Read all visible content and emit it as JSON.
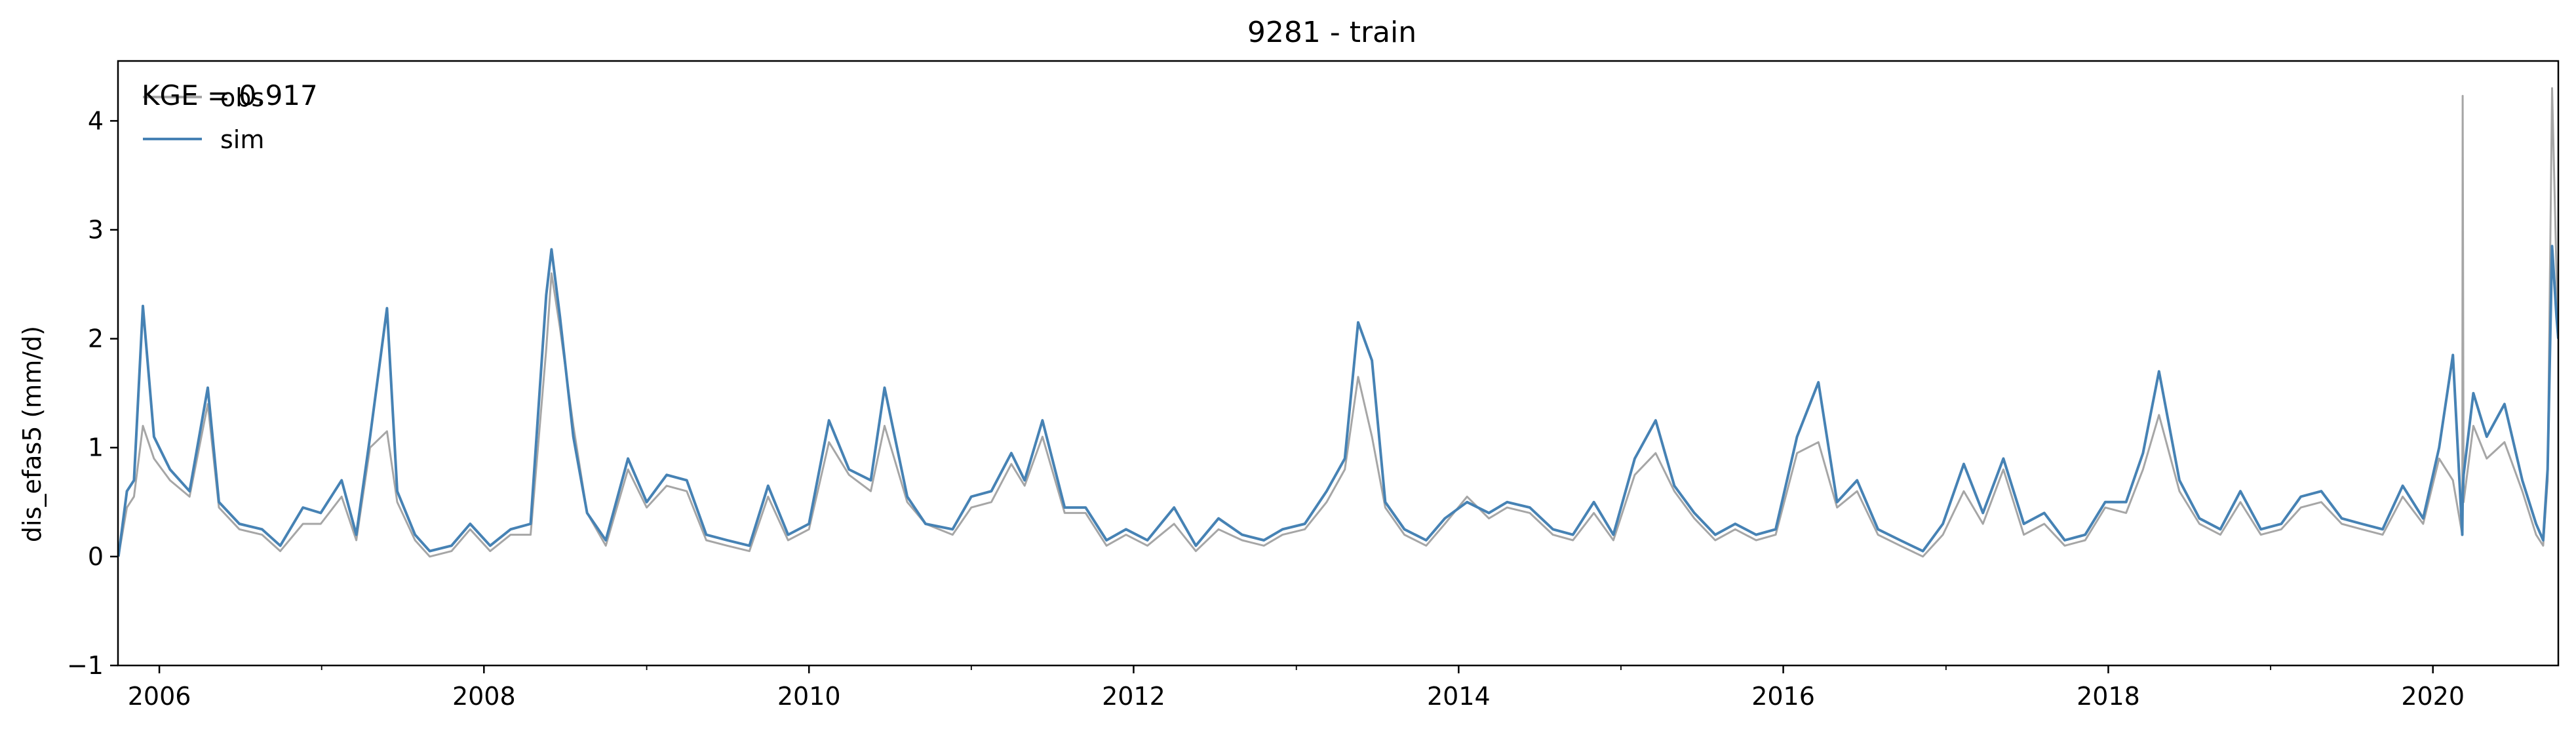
{
  "chart_data": {
    "type": "line",
    "title": "9281 - train",
    "xlabel": "",
    "ylabel": "dis_efas5 (mm/d)",
    "annotation": "KGE = 0.917",
    "xlim": [
      "2005-09-30",
      "2020-10-09"
    ],
    "ylim": [
      -1,
      4.55
    ],
    "yticks": [
      -1,
      0,
      1,
      2,
      3,
      4
    ],
    "ytick_labels": [
      "−1",
      "0",
      "1",
      "2",
      "3",
      "4"
    ],
    "xticks": [
      "2006-01-01",
      "2008-01-01",
      "2010-01-01",
      "2012-01-01",
      "2014-01-01",
      "2016-01-01",
      "2018-01-01",
      "2020-01-01"
    ],
    "xtick_labels": [
      "2006",
      "2008",
      "2010",
      "2012",
      "2014",
      "2016",
      "2018",
      "2020"
    ],
    "grid": false,
    "legend": {
      "position": "top-left",
      "entries": [
        "obs",
        "sim"
      ]
    },
    "series": [
      {
        "name": "obs",
        "color": "#a6a6a6",
        "x": [
          "2005-10-01",
          "2005-10-20",
          "2005-11-05",
          "2005-11-25",
          "2005-12-20",
          "2006-01-25",
          "2006-03-10",
          "2006-04-20",
          "2006-05-15",
          "2006-06-30",
          "2006-08-20",
          "2006-09-30",
          "2006-11-20",
          "2006-12-30",
          "2007-02-15",
          "2007-03-20",
          "2007-04-20",
          "2007-05-28",
          "2007-06-20",
          "2007-07-30",
          "2007-09-01",
          "2007-10-20",
          "2007-12-01",
          "2008-01-15",
          "2008-03-01",
          "2008-04-15",
          "2008-05-20",
          "2008-06-01",
          "2008-06-20",
          "2008-07-20",
          "2008-08-20",
          "2008-10-01",
          "2008-11-20",
          "2009-01-01",
          "2009-02-15",
          "2009-04-01",
          "2009-05-15",
          "2009-07-01",
          "2009-08-20",
          "2009-10-01",
          "2009-11-15",
          "2010-01-01",
          "2010-02-15",
          "2010-04-01",
          "2010-05-20",
          "2010-06-20",
          "2010-08-10",
          "2010-09-20",
          "2010-11-20",
          "2011-01-01",
          "2011-02-15",
          "2011-04-01",
          "2011-05-01",
          "2011-06-10",
          "2011-07-30",
          "2011-09-15",
          "2011-11-01",
          "2011-12-15",
          "2012-02-01",
          "2012-04-01",
          "2012-05-20",
          "2012-07-10",
          "2012-09-01",
          "2012-10-20",
          "2012-12-01",
          "2013-01-20",
          "2013-03-10",
          "2013-04-20",
          "2013-05-20",
          "2013-06-20",
          "2013-07-20",
          "2013-09-01",
          "2013-10-20",
          "2013-12-01",
          "2014-01-20",
          "2014-03-10",
          "2014-04-20",
          "2014-06-10",
          "2014-08-01",
          "2014-09-15",
          "2014-11-01",
          "2014-12-15",
          "2015-02-01",
          "2015-03-20",
          "2015-05-01",
          "2015-06-15",
          "2015-08-01",
          "2015-09-15",
          "2015-11-01",
          "2015-12-15",
          "2016-02-01",
          "2016-03-20",
          "2016-05-01",
          "2016-06-15",
          "2016-08-01",
          "2016-09-20",
          "2016-11-10",
          "2016-12-25",
          "2017-02-10",
          "2017-03-25",
          "2017-05-10",
          "2017-06-25",
          "2017-08-10",
          "2017-09-25",
          "2017-11-10",
          "2017-12-25",
          "2018-02-10",
          "2018-03-20",
          "2018-04-25",
          "2018-06-10",
          "2018-07-25",
          "2018-09-10",
          "2018-10-25",
          "2018-12-10",
          "2019-01-25",
          "2019-03-10",
          "2019-04-25",
          "2019-06-10",
          "2019-07-25",
          "2019-09-10",
          "2019-10-25",
          "2019-12-10",
          "2020-01-15",
          "2020-02-15",
          "2020-03-07",
          "2020-03-08",
          "2020-03-10",
          "2020-04-01",
          "2020-05-01",
          "2020-06-10",
          "2020-07-20",
          "2020-08-20",
          "2020-09-05",
          "2020-09-15",
          "2020-09-25",
          "2020-10-05",
          "2020-10-09"
        ],
        "values": [
          0.0,
          0.45,
          0.55,
          1.2,
          0.9,
          0.7,
          0.55,
          1.4,
          0.45,
          0.25,
          0.2,
          0.05,
          0.3,
          0.3,
          0.55,
          0.15,
          1.0,
          1.15,
          0.5,
          0.15,
          0.0,
          0.05,
          0.25,
          0.05,
          0.2,
          0.2,
          1.9,
          2.6,
          2.1,
          1.2,
          0.4,
          0.1,
          0.8,
          0.45,
          0.65,
          0.6,
          0.15,
          0.1,
          0.05,
          0.55,
          0.15,
          0.25,
          1.05,
          0.75,
          0.6,
          1.2,
          0.5,
          0.3,
          0.2,
          0.45,
          0.5,
          0.85,
          0.65,
          1.1,
          0.4,
          0.4,
          0.1,
          0.2,
          0.1,
          0.3,
          0.05,
          0.25,
          0.15,
          0.1,
          0.2,
          0.25,
          0.5,
          0.8,
          1.65,
          1.1,
          0.45,
          0.2,
          0.1,
          0.3,
          0.55,
          0.35,
          0.45,
          0.4,
          0.2,
          0.15,
          0.4,
          0.15,
          0.75,
          0.95,
          0.6,
          0.35,
          0.15,
          0.25,
          0.15,
          0.2,
          0.95,
          1.05,
          0.45,
          0.6,
          0.2,
          0.1,
          0.0,
          0.2,
          0.6,
          0.3,
          0.8,
          0.2,
          0.3,
          0.1,
          0.15,
          0.45,
          0.4,
          0.8,
          1.3,
          0.6,
          0.3,
          0.2,
          0.5,
          0.2,
          0.25,
          0.45,
          0.5,
          0.3,
          0.25,
          0.2,
          0.55,
          0.3,
          0.9,
          0.7,
          0.2,
          4.23,
          0.5,
          1.2,
          0.9,
          1.05,
          0.6,
          0.2,
          0.1,
          0.7,
          4.3,
          2.6,
          2.0
        ]
      },
      {
        "name": "sim",
        "color": "#4682b4",
        "x": [
          "2005-10-01",
          "2005-10-20",
          "2005-11-05",
          "2005-11-25",
          "2005-12-20",
          "2006-01-25",
          "2006-03-10",
          "2006-04-20",
          "2006-05-15",
          "2006-06-30",
          "2006-08-20",
          "2006-09-30",
          "2006-11-20",
          "2006-12-30",
          "2007-02-15",
          "2007-03-20",
          "2007-04-20",
          "2007-05-28",
          "2007-06-20",
          "2007-07-30",
          "2007-09-01",
          "2007-10-20",
          "2007-12-01",
          "2008-01-15",
          "2008-03-01",
          "2008-04-15",
          "2008-05-20",
          "2008-06-01",
          "2008-06-20",
          "2008-07-20",
          "2008-08-20",
          "2008-10-01",
          "2008-11-20",
          "2009-01-01",
          "2009-02-15",
          "2009-04-01",
          "2009-05-15",
          "2009-07-01",
          "2009-08-20",
          "2009-10-01",
          "2009-11-15",
          "2010-01-01",
          "2010-02-15",
          "2010-04-01",
          "2010-05-20",
          "2010-06-20",
          "2010-08-10",
          "2010-09-20",
          "2010-11-20",
          "2011-01-01",
          "2011-02-15",
          "2011-04-01",
          "2011-05-01",
          "2011-06-10",
          "2011-07-30",
          "2011-09-15",
          "2011-11-01",
          "2011-12-15",
          "2012-02-01",
          "2012-04-01",
          "2012-05-20",
          "2012-07-10",
          "2012-09-01",
          "2012-10-20",
          "2012-12-01",
          "2013-01-20",
          "2013-03-10",
          "2013-04-20",
          "2013-05-20",
          "2013-06-20",
          "2013-07-20",
          "2013-09-01",
          "2013-10-20",
          "2013-12-01",
          "2014-01-20",
          "2014-03-10",
          "2014-04-20",
          "2014-06-10",
          "2014-08-01",
          "2014-09-15",
          "2014-11-01",
          "2014-12-15",
          "2015-02-01",
          "2015-03-20",
          "2015-05-01",
          "2015-06-15",
          "2015-08-01",
          "2015-09-15",
          "2015-11-01",
          "2015-12-15",
          "2016-02-01",
          "2016-03-20",
          "2016-05-01",
          "2016-06-15",
          "2016-08-01",
          "2016-09-20",
          "2016-11-10",
          "2016-12-25",
          "2017-02-10",
          "2017-03-25",
          "2017-05-10",
          "2017-06-25",
          "2017-08-10",
          "2017-09-25",
          "2017-11-10",
          "2017-12-25",
          "2018-02-10",
          "2018-03-20",
          "2018-04-25",
          "2018-06-10",
          "2018-07-25",
          "2018-09-10",
          "2018-10-25",
          "2018-12-10",
          "2019-01-25",
          "2019-03-10",
          "2019-04-25",
          "2019-06-10",
          "2019-07-25",
          "2019-09-10",
          "2019-10-25",
          "2019-12-10",
          "2020-01-15",
          "2020-02-15",
          "2020-03-07",
          "2020-03-08",
          "2020-03-10",
          "2020-04-01",
          "2020-05-01",
          "2020-06-10",
          "2020-07-20",
          "2020-08-20",
          "2020-09-05",
          "2020-09-15",
          "2020-09-25",
          "2020-10-05",
          "2020-10-09"
        ],
        "values": [
          0.0,
          0.6,
          0.7,
          2.3,
          1.1,
          0.8,
          0.6,
          1.55,
          0.5,
          0.3,
          0.25,
          0.1,
          0.45,
          0.4,
          0.7,
          0.2,
          1.1,
          2.28,
          0.6,
          0.2,
          0.05,
          0.1,
          0.3,
          0.1,
          0.25,
          0.3,
          2.4,
          2.82,
          2.2,
          1.1,
          0.4,
          0.15,
          0.9,
          0.5,
          0.75,
          0.7,
          0.2,
          0.15,
          0.1,
          0.65,
          0.2,
          0.3,
          1.25,
          0.8,
          0.7,
          1.55,
          0.55,
          0.3,
          0.25,
          0.55,
          0.6,
          0.95,
          0.7,
          1.25,
          0.45,
          0.45,
          0.15,
          0.25,
          0.15,
          0.45,
          0.1,
          0.35,
          0.2,
          0.15,
          0.25,
          0.3,
          0.6,
          0.9,
          2.15,
          1.8,
          0.5,
          0.25,
          0.15,
          0.35,
          0.5,
          0.4,
          0.5,
          0.45,
          0.25,
          0.2,
          0.5,
          0.2,
          0.9,
          1.25,
          0.65,
          0.4,
          0.2,
          0.3,
          0.2,
          0.25,
          1.1,
          1.6,
          0.5,
          0.7,
          0.25,
          0.15,
          0.05,
          0.3,
          0.85,
          0.4,
          0.9,
          0.3,
          0.4,
          0.15,
          0.2,
          0.5,
          0.5,
          0.95,
          1.7,
          0.7,
          0.35,
          0.25,
          0.6,
          0.25,
          0.3,
          0.55,
          0.6,
          0.35,
          0.3,
          0.25,
          0.65,
          0.35,
          1.0,
          1.85,
          0.2,
          0.55,
          0.75,
          1.5,
          1.1,
          1.4,
          0.7,
          0.3,
          0.15,
          0.8,
          2.85,
          2.2,
          2.0
        ]
      }
    ]
  }
}
